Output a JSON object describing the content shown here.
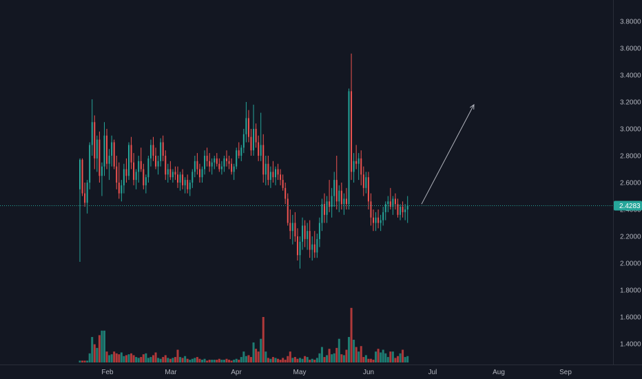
{
  "chart_data": {
    "type": "candlestick",
    "x_axis_labels": [
      "Feb",
      "Mar",
      "Apr",
      "May",
      "Jun",
      "Jul",
      "Aug",
      "Sep"
    ],
    "y_axis_labels": [
      "3.8000",
      "3.6000",
      "3.4000",
      "3.2000",
      "3.0000",
      "2.8000",
      "2.6000",
      "2.4000",
      "2.2000",
      "2.0000",
      "1.8000",
      "1.6000",
      "1.4000"
    ],
    "ylim": [
      1.25,
      3.95
    ],
    "last_price": 2.4283,
    "last_price_label": "2.4283",
    "grid": false,
    "projection_arrow": {
      "from": 2.44,
      "to": 3.18
    },
    "colors": {
      "background": "#131722",
      "up": "#26a69a",
      "down": "#ef5350",
      "up_volume": "#1e7d73",
      "down_volume": "#b0393a",
      "last_line": "#26a69a",
      "axis_text": "#b2b5be",
      "axis_line": "#2a2e39",
      "arrow": "#b2b5be"
    },
    "series": [
      {
        "name": "",
        "ohlc": [
          [
            2.55,
            2.78,
            2.01,
            2.77
          ],
          [
            2.77,
            2.78,
            2.5,
            2.52
          ],
          [
            2.52,
            2.6,
            2.42,
            2.45
          ],
          [
            2.45,
            2.62,
            2.37,
            2.6
          ],
          [
            2.6,
            2.9,
            2.55,
            2.88
          ],
          [
            2.88,
            3.22,
            2.8,
            3.05
          ],
          [
            3.05,
            3.1,
            2.7,
            2.78
          ],
          [
            2.78,
            2.95,
            2.68,
            2.92
          ],
          [
            2.92,
            2.98,
            2.6,
            2.65
          ],
          [
            2.65,
            2.75,
            2.5,
            2.72
          ],
          [
            2.72,
            3.05,
            2.65,
            2.95
          ],
          [
            2.95,
            3.0,
            2.7,
            2.74
          ],
          [
            2.74,
            2.85,
            2.62,
            2.8
          ],
          [
            2.8,
            2.95,
            2.72,
            2.9
          ],
          [
            2.9,
            2.92,
            2.7,
            2.72
          ],
          [
            2.72,
            2.8,
            2.55,
            2.6
          ],
          [
            2.6,
            2.75,
            2.48,
            2.52
          ],
          [
            2.52,
            2.62,
            2.46,
            2.58
          ],
          [
            2.58,
            2.74,
            2.52,
            2.7
          ],
          [
            2.7,
            2.78,
            2.6,
            2.65
          ],
          [
            2.65,
            2.9,
            2.62,
            2.88
          ],
          [
            2.88,
            2.94,
            2.7,
            2.75
          ],
          [
            2.75,
            2.82,
            2.58,
            2.62
          ],
          [
            2.62,
            2.7,
            2.55,
            2.68
          ],
          [
            2.68,
            2.8,
            2.6,
            2.76
          ],
          [
            2.76,
            2.86,
            2.68,
            2.7
          ],
          [
            2.7,
            2.74,
            2.55,
            2.58
          ],
          [
            2.58,
            2.66,
            2.52,
            2.64
          ],
          [
            2.64,
            2.8,
            2.6,
            2.78
          ],
          [
            2.78,
            2.92,
            2.72,
            2.88
          ],
          [
            2.88,
            2.94,
            2.76,
            2.8
          ],
          [
            2.8,
            2.86,
            2.7,
            2.72
          ],
          [
            2.72,
            2.8,
            2.66,
            2.76
          ],
          [
            2.76,
            2.93,
            2.72,
            2.9
          ],
          [
            2.9,
            2.95,
            2.76,
            2.8
          ],
          [
            2.8,
            2.84,
            2.62,
            2.66
          ],
          [
            2.66,
            2.74,
            2.6,
            2.7
          ],
          [
            2.7,
            2.76,
            2.62,
            2.64
          ],
          [
            2.64,
            2.7,
            2.6,
            2.68
          ],
          [
            2.68,
            2.72,
            2.62,
            2.66
          ],
          [
            2.66,
            2.72,
            2.56,
            2.6
          ],
          [
            2.6,
            2.68,
            2.54,
            2.66
          ],
          [
            2.66,
            2.7,
            2.55,
            2.58
          ],
          [
            2.58,
            2.64,
            2.52,
            2.62
          ],
          [
            2.62,
            2.66,
            2.52,
            2.55
          ],
          [
            2.55,
            2.62,
            2.5,
            2.6
          ],
          [
            2.6,
            2.7,
            2.56,
            2.68
          ],
          [
            2.68,
            2.8,
            2.64,
            2.76
          ],
          [
            2.76,
            2.82,
            2.66,
            2.7
          ],
          [
            2.7,
            2.74,
            2.6,
            2.64
          ],
          [
            2.64,
            2.72,
            2.6,
            2.7
          ],
          [
            2.7,
            2.84,
            2.66,
            2.8
          ],
          [
            2.8,
            2.86,
            2.72,
            2.76
          ],
          [
            2.76,
            2.82,
            2.68,
            2.72
          ],
          [
            2.72,
            2.78,
            2.66,
            2.75
          ],
          [
            2.75,
            2.8,
            2.7,
            2.78
          ],
          [
            2.78,
            2.82,
            2.72,
            2.74
          ],
          [
            2.74,
            2.78,
            2.68,
            2.7
          ],
          [
            2.7,
            2.76,
            2.66,
            2.72
          ],
          [
            2.72,
            2.8,
            2.68,
            2.78
          ],
          [
            2.78,
            2.84,
            2.72,
            2.76
          ],
          [
            2.76,
            2.8,
            2.7,
            2.74
          ],
          [
            2.74,
            2.78,
            2.66,
            2.68
          ],
          [
            2.68,
            2.74,
            2.62,
            2.72
          ],
          [
            2.72,
            2.86,
            2.7,
            2.84
          ],
          [
            2.84,
            2.9,
            2.78,
            2.8
          ],
          [
            2.8,
            2.88,
            2.76,
            2.86
          ],
          [
            2.86,
            3.0,
            2.82,
            2.96
          ],
          [
            2.96,
            3.2,
            2.9,
            3.08
          ],
          [
            3.08,
            3.14,
            2.9,
            2.94
          ],
          [
            2.94,
            3.0,
            2.8,
            2.84
          ],
          [
            2.84,
            3.18,
            2.8,
            3.0
          ],
          [
            3.0,
            3.04,
            2.86,
            2.9
          ],
          [
            2.9,
            2.95,
            2.76,
            2.8
          ],
          [
            2.8,
            3.12,
            2.76,
            2.88
          ],
          [
            2.88,
            2.96,
            2.6,
            2.66
          ],
          [
            2.66,
            2.8,
            2.58,
            2.74
          ],
          [
            2.74,
            2.8,
            2.58,
            2.62
          ],
          [
            2.62,
            2.72,
            2.56,
            2.68
          ],
          [
            2.68,
            2.76,
            2.6,
            2.64
          ],
          [
            2.64,
            2.72,
            2.58,
            2.7
          ],
          [
            2.7,
            2.74,
            2.62,
            2.66
          ],
          [
            2.66,
            2.7,
            2.58,
            2.62
          ],
          [
            2.62,
            2.66,
            2.54,
            2.56
          ],
          [
            2.56,
            2.6,
            2.44,
            2.48
          ],
          [
            2.48,
            2.52,
            2.28,
            2.3
          ],
          [
            2.3,
            2.4,
            2.18,
            2.24
          ],
          [
            2.24,
            2.36,
            2.14,
            2.3
          ],
          [
            2.3,
            2.38,
            2.16,
            2.2
          ],
          [
            2.2,
            2.26,
            2.02,
            2.06
          ],
          [
            2.06,
            2.2,
            1.96,
            2.16
          ],
          [
            2.16,
            2.34,
            2.1,
            2.28
          ],
          [
            2.28,
            2.32,
            2.12,
            2.18
          ],
          [
            2.18,
            2.3,
            2.1,
            2.24
          ],
          [
            2.24,
            2.32,
            2.04,
            2.1
          ],
          [
            2.1,
            2.2,
            2.02,
            2.14
          ],
          [
            2.14,
            2.24,
            2.04,
            2.08
          ],
          [
            2.08,
            2.22,
            2.04,
            2.18
          ],
          [
            2.18,
            2.34,
            2.12,
            2.3
          ],
          [
            2.3,
            2.48,
            2.24,
            2.44
          ],
          [
            2.44,
            2.52,
            2.3,
            2.36
          ],
          [
            2.36,
            2.5,
            2.3,
            2.46
          ],
          [
            2.46,
            2.62,
            2.38,
            2.42
          ],
          [
            2.42,
            2.56,
            2.34,
            2.5
          ],
          [
            2.5,
            2.68,
            2.42,
            2.62
          ],
          [
            2.62,
            2.8,
            2.4,
            2.46
          ],
          [
            2.46,
            2.58,
            2.38,
            2.54
          ],
          [
            2.54,
            2.6,
            2.4,
            2.44
          ],
          [
            2.44,
            2.52,
            2.36,
            2.48
          ],
          [
            2.48,
            2.56,
            2.4,
            2.44
          ],
          [
            2.44,
            3.3,
            2.4,
            3.28
          ],
          [
            3.28,
            3.56,
            2.62,
            2.68
          ],
          [
            2.68,
            2.82,
            2.6,
            2.76
          ],
          [
            2.76,
            2.88,
            2.7,
            2.74
          ],
          [
            2.74,
            2.82,
            2.62,
            2.78
          ],
          [
            2.78,
            2.84,
            2.58,
            2.66
          ],
          [
            2.66,
            2.72,
            2.5,
            2.56
          ],
          [
            2.56,
            2.68,
            2.52,
            2.64
          ],
          [
            2.64,
            2.68,
            2.4,
            2.46
          ],
          [
            2.46,
            2.52,
            2.28,
            2.34
          ],
          [
            2.34,
            2.4,
            2.24,
            2.3
          ],
          [
            2.3,
            2.38,
            2.24,
            2.34
          ],
          [
            2.34,
            2.4,
            2.26,
            2.3
          ],
          [
            2.3,
            2.36,
            2.24,
            2.32
          ],
          [
            2.32,
            2.42,
            2.28,
            2.38
          ],
          [
            2.38,
            2.46,
            2.32,
            2.44
          ],
          [
            2.44,
            2.5,
            2.38,
            2.46
          ],
          [
            2.46,
            2.56,
            2.4,
            2.42
          ],
          [
            2.42,
            2.5,
            2.36,
            2.48
          ],
          [
            2.48,
            2.52,
            2.4,
            2.44
          ],
          [
            2.44,
            2.48,
            2.34,
            2.36
          ],
          [
            2.36,
            2.44,
            2.32,
            2.42
          ],
          [
            2.42,
            2.46,
            2.34,
            2.38
          ],
          [
            2.38,
            2.44,
            2.32,
            2.4
          ],
          [
            2.4,
            2.5,
            2.3,
            2.43
          ]
        ],
        "volume": [
          0.02,
          0.02,
          0.02,
          0.02,
          0.1,
          0.28,
          0.2,
          0.16,
          0.3,
          0.35,
          0.35,
          0.12,
          0.08,
          0.09,
          0.12,
          0.1,
          0.09,
          0.11,
          0.07,
          0.08,
          0.09,
          0.1,
          0.08,
          0.06,
          0.05,
          0.06,
          0.09,
          0.1,
          0.05,
          0.06,
          0.08,
          0.11,
          0.05,
          0.04,
          0.06,
          0.08,
          0.05,
          0.04,
          0.05,
          0.06,
          0.14,
          0.06,
          0.05,
          0.07,
          0.04,
          0.03,
          0.04,
          0.05,
          0.06,
          0.04,
          0.03,
          0.04,
          0.02,
          0.03,
          0.03,
          0.03,
          0.03,
          0.04,
          0.03,
          0.03,
          0.04,
          0.03,
          0.02,
          0.03,
          0.04,
          0.03,
          0.06,
          0.12,
          0.07,
          0.08,
          0.06,
          0.22,
          0.15,
          0.12,
          0.26,
          0.5,
          0.12,
          0.05,
          0.04,
          0.06,
          0.05,
          0.04,
          0.03,
          0.05,
          0.03,
          0.07,
          0.12,
          0.05,
          0.06,
          0.04,
          0.05,
          0.04,
          0.07,
          0.06,
          0.03,
          0.04,
          0.03,
          0.05,
          0.1,
          0.17,
          0.06,
          0.08,
          0.15,
          0.09,
          0.1,
          0.16,
          0.26,
          0.09,
          0.08,
          0.14,
          0.28,
          0.6,
          0.25,
          0.17,
          0.12,
          0.18,
          0.06,
          0.08,
          0.04,
          0.04,
          0.03,
          0.12,
          0.15,
          0.11,
          0.14,
          0.1,
          0.06,
          0.12,
          0.12,
          0.05,
          0.07,
          0.1,
          0.14,
          0.06,
          0.07
        ]
      }
    ]
  }
}
